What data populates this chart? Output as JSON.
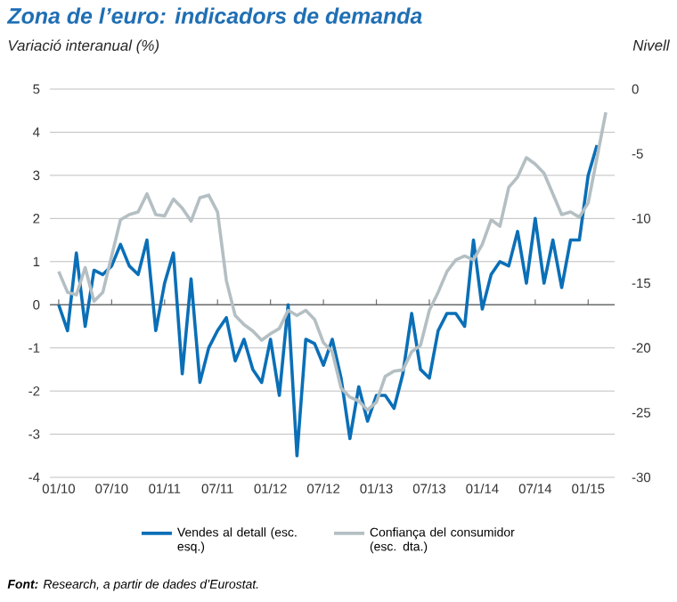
{
  "chart_data": {
    "type": "line",
    "title": "Zona de l’euro: indicadors de demanda",
    "ylabel": "Variació interanual (%)",
    "y2label": "Nivell",
    "annotations": [
      "**Font:** Research, a partir de dades d’Eurostat."
    ],
    "x": [
      "2010-01",
      "2010-02",
      "2010-03",
      "2010-04",
      "2010-05",
      "2010-06",
      "2010-07",
      "2010-08",
      "2010-09",
      "2010-10",
      "2010-11",
      "2010-12",
      "2011-01",
      "2011-02",
      "2011-03",
      "2011-04",
      "2011-05",
      "2011-06",
      "2011-07",
      "2011-08",
      "2011-09",
      "2011-10",
      "2011-11",
      "2011-12",
      "2012-01",
      "2012-02",
      "2012-03",
      "2012-04",
      "2012-05",
      "2012-06",
      "2012-07",
      "2012-08",
      "2012-09",
      "2012-10",
      "2012-11",
      "2012-12",
      "2013-01",
      "2013-02",
      "2013-03",
      "2013-04",
      "2013-05",
      "2013-06",
      "2013-07",
      "2013-08",
      "2013-09",
      "2013-10",
      "2013-11",
      "2013-12",
      "2014-01",
      "2014-02",
      "2014-03",
      "2014-04",
      "2014-05",
      "2014-06",
      "2014-07",
      "2014-08",
      "2014-09",
      "2014-10",
      "2014-11",
      "2014-12",
      "2015-01",
      "2015-02",
      "2015-03"
    ],
    "series": [
      {
        "name": "Vendes al detall (esc. esq.)",
        "color": "#0a6fb7",
        "values": [
          0,
          -0.6,
          1.2,
          -0.5,
          0.8,
          0.7,
          0.9,
          1.4,
          0.9,
          0.7,
          1.5,
          -0.6,
          0.5,
          1.2,
          -1.6,
          0.6,
          -1.8,
          -1.0,
          -0.6,
          -0.3,
          -1.3,
          -0.8,
          -1.5,
          -1.8,
          -0.8,
          -2.1,
          0.0,
          -3.5,
          -0.8,
          -0.9,
          -1.4,
          -0.8,
          -1.7,
          -3.1,
          -1.9,
          -2.7,
          -2.1,
          -2.1,
          -2.4,
          -1.6,
          -0.2,
          -1.5,
          -1.7,
          -0.6,
          -0.2,
          -0.2,
          -0.5,
          1.5,
          -0.1,
          0.7,
          1.0,
          0.9,
          1.7,
          0.5,
          2.0,
          0.5,
          1.5,
          0.4,
          1.5,
          1.5,
          3.0,
          3.7,
          null
        ]
      },
      {
        "name": "Confiança del consumidor (esc. dta.)",
        "color": "#b4bfc3",
        "axis": "y2",
        "values": [
          -14.1,
          -15.7,
          -15.9,
          -13.8,
          -16.4,
          -15.7,
          -12.9,
          -10.1,
          -9.7,
          -9.5,
          -8.1,
          -9.7,
          -9.8,
          -8.5,
          -9.2,
          -10.2,
          -8.4,
          -8.2,
          -9.5,
          -14.8,
          -17.5,
          -18.2,
          -18.7,
          -19.4,
          -18.9,
          -18.5,
          -17.1,
          -17.5,
          -17.1,
          -17.8,
          -19.6,
          -20.3,
          -23.1,
          -23.8,
          -24.1,
          -24.8,
          -24.2,
          -22.2,
          -21.8,
          -21.7,
          -20.3,
          -19.8,
          -17.1,
          -15.7,
          -14.1,
          -13.2,
          -12.9,
          -13.2,
          -12.0,
          -10.1,
          -10.6,
          -7.6,
          -6.8,
          -5.3,
          -5.8,
          -6.5,
          -8.1,
          -9.7,
          -9.5,
          -9.9,
          -8.8,
          -5.3,
          -1.8
        ]
      }
    ],
    "xlim": [
      "2009-12",
      "2015-04"
    ],
    "xticks": [
      {
        "value": "2010-01",
        "label": "01/10"
      },
      {
        "value": "2010-07",
        "label": "07/10"
      },
      {
        "value": "2011-01",
        "label": "01/11"
      },
      {
        "value": "2011-07",
        "label": "07/11"
      },
      {
        "value": "2012-01",
        "label": "01/12"
      },
      {
        "value": "2012-07",
        "label": "07/12"
      },
      {
        "value": "2013-01",
        "label": "01/13"
      },
      {
        "value": "2013-07",
        "label": "07/13"
      },
      {
        "value": "2014-01",
        "label": "01/14"
      },
      {
        "value": "2014-07",
        "label": "07/14"
      },
      {
        "value": "2015-01",
        "label": "01/15"
      }
    ],
    "ylim": [
      -4,
      5
    ],
    "yticks": [
      -4,
      -3,
      -2,
      -1,
      0,
      1,
      2,
      3,
      4,
      5
    ],
    "y2lim": [
      -30,
      0
    ],
    "y2ticks": [
      -30,
      -25,
      -20,
      -15,
      -10,
      -5,
      0
    ],
    "ref_lines": [
      {
        "axis": "y",
        "value": 0,
        "color": "#6d6e70"
      }
    ],
    "grid": "y",
    "legend": "bottom",
    "line_style": "solid",
    "marker": "none"
  }
}
